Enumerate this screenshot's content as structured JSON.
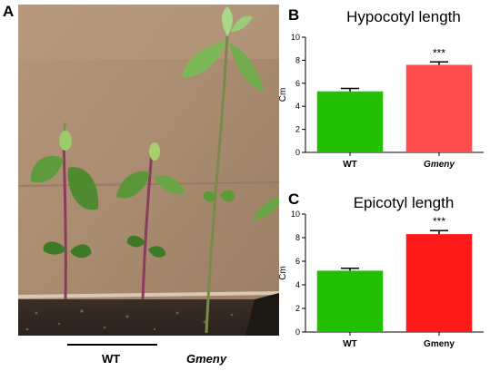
{
  "figure": {
    "panel_labels": [
      "A",
      "B",
      "C"
    ],
    "photo": {
      "label_wt": "WT",
      "label_mutant": "Gmeny"
    }
  },
  "colors": {
    "wt": "#22c000",
    "mutant_b": "#ff4d4d",
    "mutant_c": "#ff1a1a"
  },
  "chart_data": [
    {
      "type": "bar",
      "title": "Hypocotyl length",
      "ylabel": "Cm",
      "xlabel": "",
      "categories": [
        "WT",
        "Gmeny"
      ],
      "category_italic": [
        false,
        true
      ],
      "values": [
        5.3,
        7.6
      ],
      "errors": [
        0.25,
        0.25
      ],
      "significance": [
        "",
        "***"
      ],
      "ylim": [
        0,
        10
      ],
      "yticks": [
        0,
        2,
        4,
        6,
        8,
        10
      ],
      "grid": false,
      "legend": "none"
    },
    {
      "type": "bar",
      "title": "Epicotyl length",
      "ylabel": "Cm",
      "xlabel": "",
      "categories": [
        "WT",
        "Gmeny"
      ],
      "category_italic": [
        false,
        false
      ],
      "values": [
        5.2,
        8.3
      ],
      "errors": [
        0.2,
        0.3
      ],
      "significance": [
        "",
        "***"
      ],
      "ylim": [
        0,
        10
      ],
      "yticks": [
        0,
        2,
        4,
        6,
        8,
        10
      ],
      "grid": false,
      "legend": "none"
    }
  ]
}
